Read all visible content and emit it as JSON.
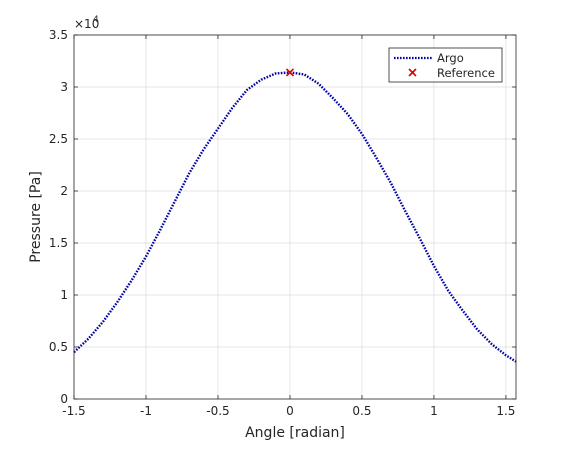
{
  "chart_data": {
    "type": "line",
    "title": "",
    "xlabel": "Angle [radian]",
    "ylabel": "Pressure [Pa]",
    "xlim": [
      -1.5,
      1.57
    ],
    "ylim": [
      0,
      35000
    ],
    "y_exponent": "4",
    "y_exponent_base": "×10",
    "grid": true,
    "legend_position": "top-right",
    "xticks": [
      -1.5,
      -1,
      -0.5,
      0,
      0.5,
      1,
      1.5
    ],
    "xtick_labels": [
      "-1.5",
      "-1",
      "-0.5",
      "0",
      "0.5",
      "1",
      "1.5"
    ],
    "yticks": [
      0,
      5000,
      10000,
      15000,
      20000,
      25000,
      30000,
      35000
    ],
    "ytick_labels": [
      "0",
      "0.5",
      "1",
      "1.5",
      "2",
      "2.5",
      "3",
      "3.5"
    ],
    "series": [
      {
        "name": "Argo",
        "style": "dotted-line",
        "color": "#0000aa",
        "x": [
          -1.5,
          -1.4,
          -1.3,
          -1.2,
          -1.1,
          -1.0,
          -0.9,
          -0.8,
          -0.7,
          -0.6,
          -0.5,
          -0.4,
          -0.3,
          -0.2,
          -0.1,
          0.0,
          0.1,
          0.2,
          0.3,
          0.4,
          0.5,
          0.6,
          0.7,
          0.8,
          0.9,
          1.0,
          1.1,
          1.2,
          1.3,
          1.4,
          1.5,
          1.57
        ],
        "y": [
          4500,
          5800,
          7400,
          9300,
          11400,
          13700,
          16300,
          19000,
          21700,
          24000,
          26000,
          28000,
          29700,
          30700,
          31300,
          31400,
          31200,
          30300,
          28900,
          27400,
          25500,
          23200,
          20800,
          18100,
          15500,
          12800,
          10400,
          8500,
          6700,
          5300,
          4200,
          3600
        ]
      },
      {
        "name": "Reference",
        "style": "marker-x",
        "color": "#dd0000",
        "x": [
          0.0
        ],
        "y": [
          31400
        ]
      }
    ]
  }
}
